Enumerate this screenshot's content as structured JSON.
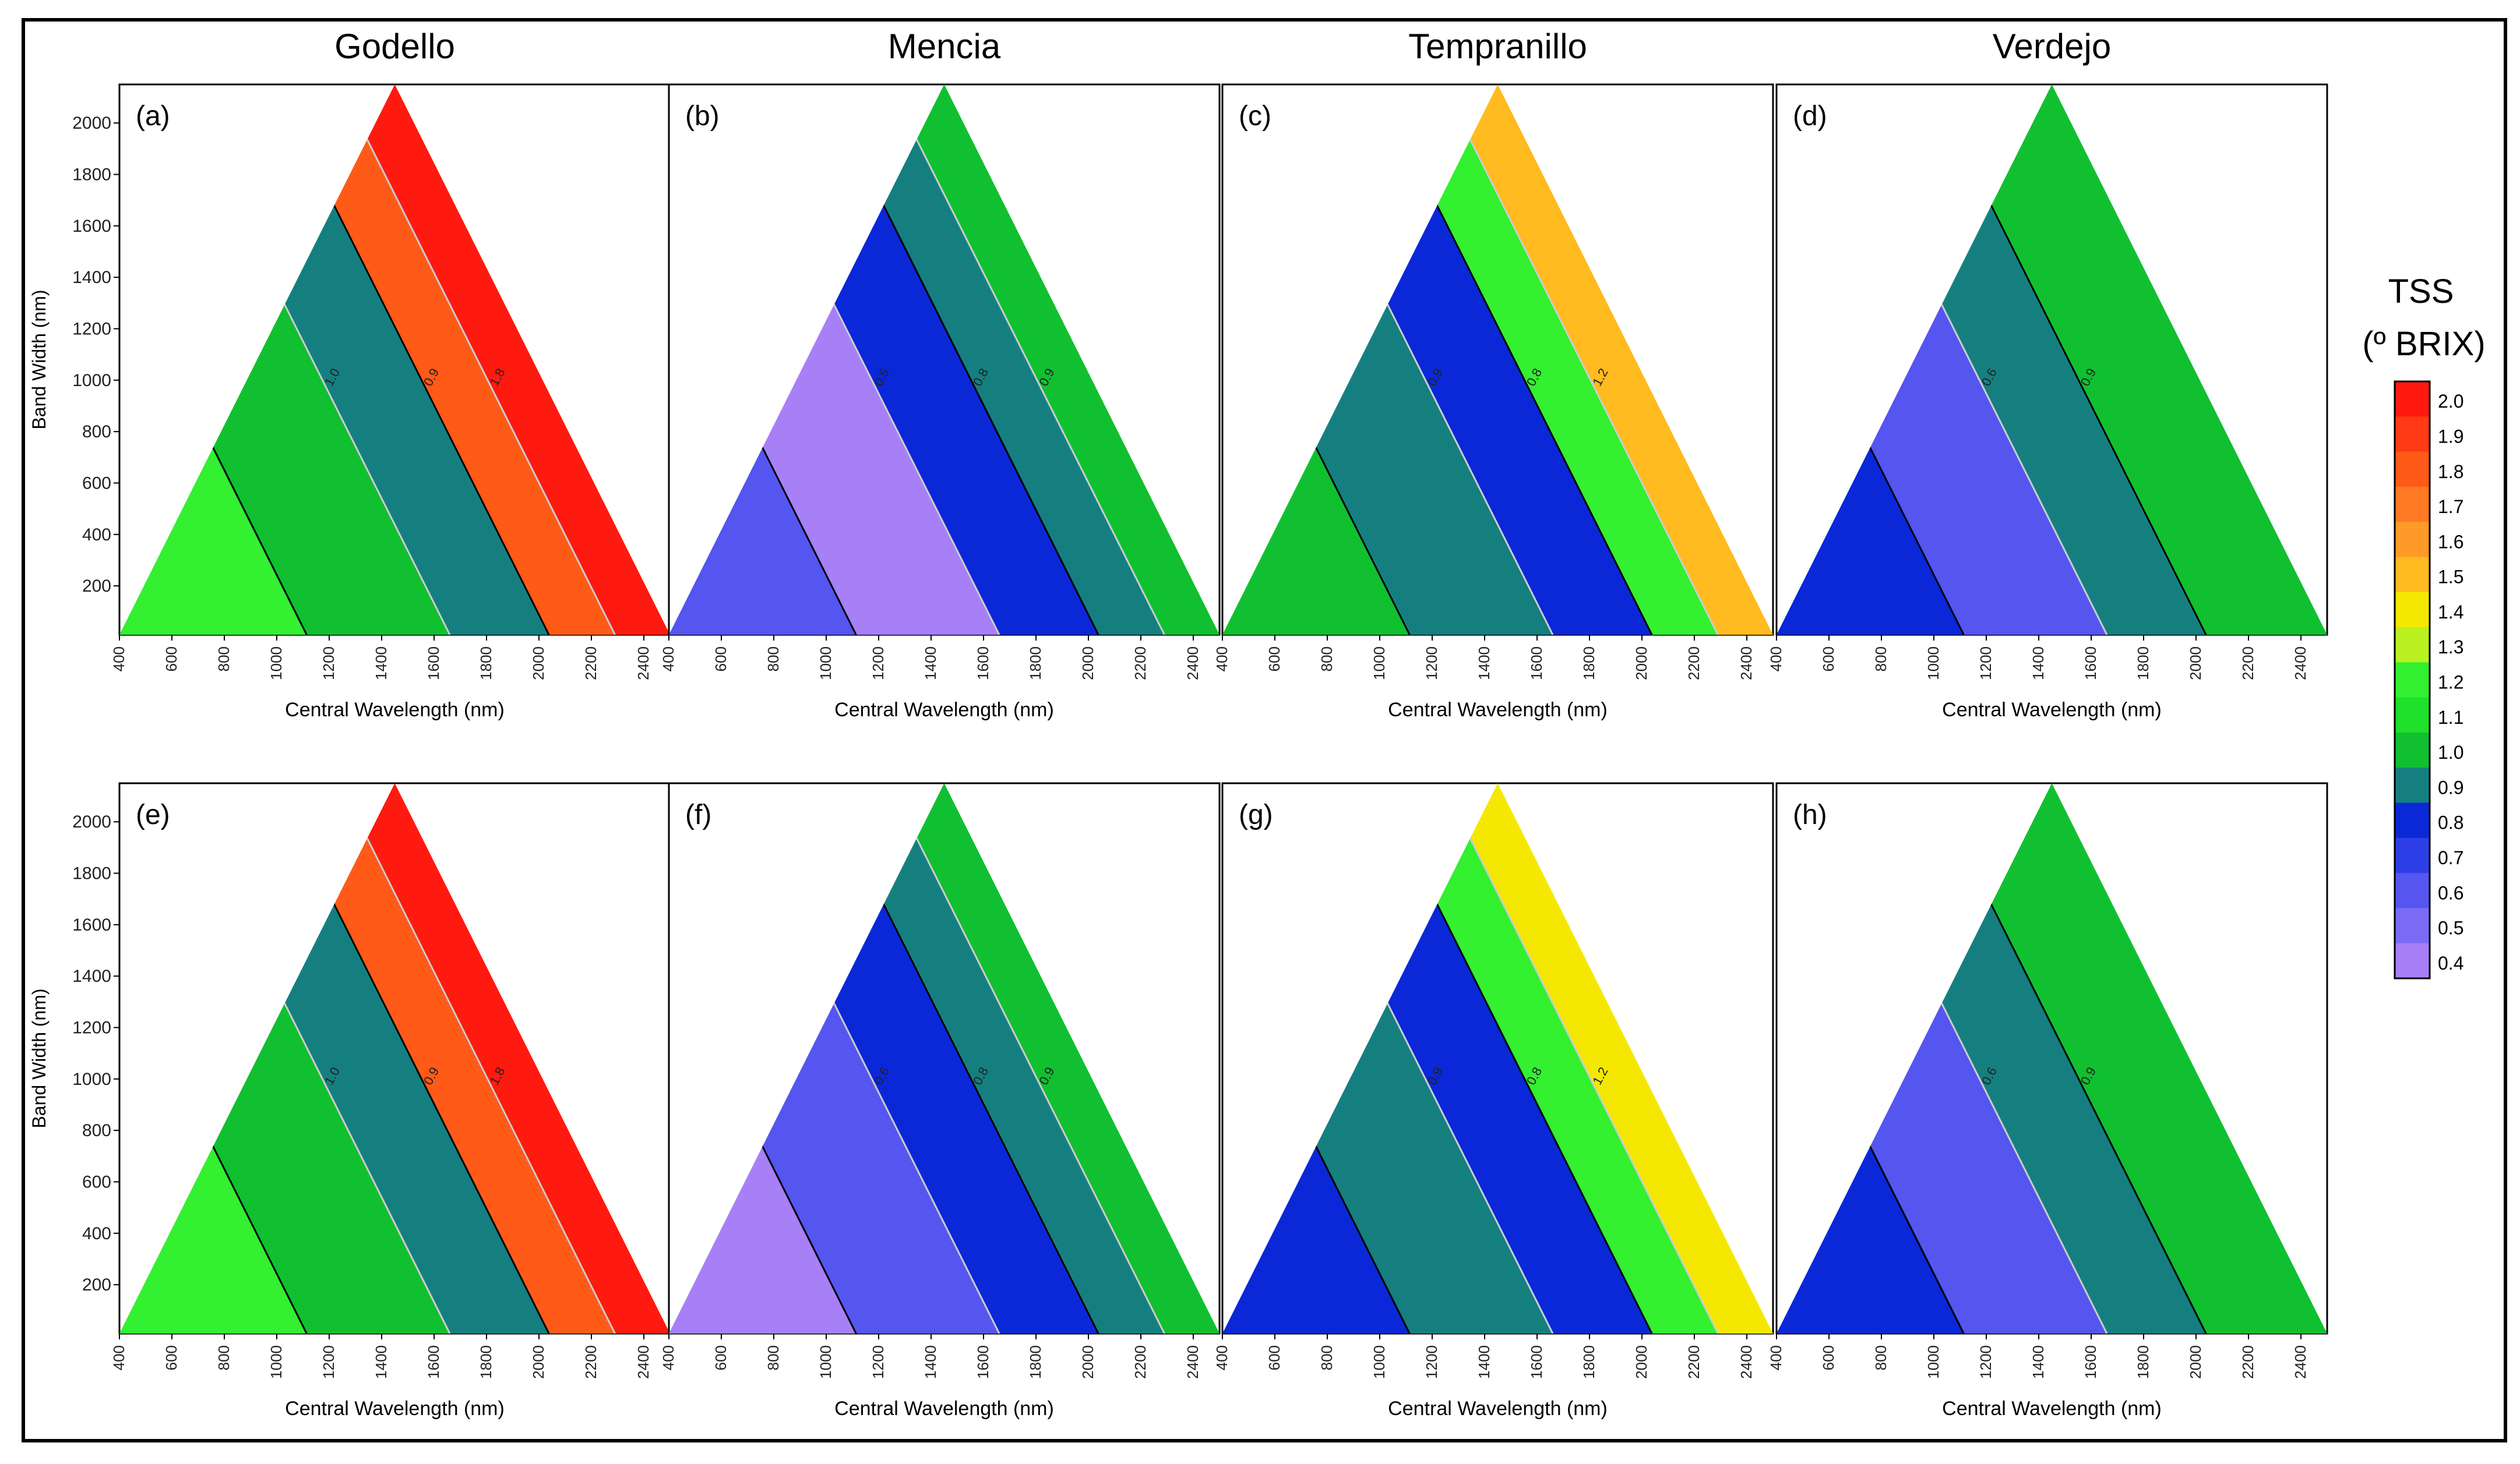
{
  "column_titles": [
    "Godello",
    "Mencia",
    "Tempranillo",
    "Verdejo"
  ],
  "legend": {
    "title_line1": "TSS",
    "title_line2": "(º BRIX)",
    "levels": [
      "2.0",
      "1.9",
      "1.8",
      "1.7",
      "1.6",
      "1.5",
      "1.4",
      "1.3",
      "1.2",
      "1.1",
      "1.0",
      "0.9",
      "0.8",
      "0.7",
      "0.6",
      "0.5",
      "0.4"
    ],
    "colors": [
      "#ff1a10",
      "#ff3a14",
      "#ff5a18",
      "#ff7a22",
      "#ff9a28",
      "#ffbb20",
      "#f5e800",
      "#b8f020",
      "#33f030",
      "#1fe02a",
      "#10c030",
      "#157f80",
      "#0a28d8",
      "#2e3ee6",
      "#5555f0",
      "#7a6cf5",
      "#a77ff7"
    ]
  },
  "chart_data": [
    {
      "type": "heatmap",
      "panel": "(a)",
      "title": "Godello",
      "xlabel": "Central Wavelength (nm)",
      "ylabel": "Band Width (nm)",
      "xlim": [
        400,
        2500
      ],
      "ylim": [
        10,
        2150
      ],
      "xticks": [
        400,
        600,
        800,
        1000,
        1200,
        1400,
        1600,
        1800,
        2000,
        2200,
        2400
      ],
      "yticks": [
        200,
        400,
        600,
        800,
        1000,
        1200,
        1400,
        1600,
        1800,
        2000
      ],
      "zones": [
        {
          "label": "1.2",
          "color": "#33f030"
        },
        {
          "label": "1.0",
          "color": "#10c030"
        },
        {
          "label": "0.9",
          "color": "#157f80"
        },
        {
          "label": "1.8",
          "color": "#ff5a18"
        },
        {
          "label": "2.0",
          "color": "#ff1a10"
        }
      ]
    },
    {
      "type": "heatmap",
      "panel": "(b)",
      "title": "Mencia",
      "xlabel": "Central Wavelength (nm)",
      "ylabel": "",
      "xlim": [
        400,
        2500
      ],
      "ylim": [
        10,
        2150
      ],
      "xticks": [
        400,
        600,
        800,
        1000,
        1200,
        1400,
        1600,
        1800,
        2000,
        2200,
        2400
      ],
      "yticks": [],
      "zones": [
        {
          "label": "0.6",
          "color": "#5555f0"
        },
        {
          "label": "0.5",
          "color": "#a77ff7"
        },
        {
          "label": "0.8",
          "color": "#0a28d8"
        },
        {
          "label": "0.9",
          "color": "#157f80"
        },
        {
          "label": "1.0",
          "color": "#10c030"
        }
      ]
    },
    {
      "type": "heatmap",
      "panel": "(c)",
      "title": "Tempranillo",
      "xlabel": "Central Wavelength (nm)",
      "ylabel": "",
      "xlim": [
        400,
        2500
      ],
      "ylim": [
        10,
        2150
      ],
      "xticks": [
        400,
        600,
        800,
        1000,
        1200,
        1400,
        1600,
        1800,
        2000,
        2200,
        2400
      ],
      "yticks": [],
      "zones": [
        {
          "label": "1.0",
          "color": "#10c030"
        },
        {
          "label": "0.9",
          "color": "#157f80"
        },
        {
          "label": "0.8",
          "color": "#0a28d8"
        },
        {
          "label": "1.2",
          "color": "#33f030"
        },
        {
          "label": "1.6",
          "color": "#ffbb20"
        }
      ]
    },
    {
      "type": "heatmap",
      "panel": "(d)",
      "title": "Verdejo",
      "xlabel": "Central Wavelength (nm)",
      "ylabel": "",
      "xlim": [
        400,
        2500
      ],
      "ylim": [
        10,
        2150
      ],
      "xticks": [
        400,
        600,
        800,
        1000,
        1200,
        1400,
        1600,
        1800,
        2000,
        2200,
        2400
      ],
      "yticks": [],
      "zones": [
        {
          "label": "0.8",
          "color": "#0a28d8"
        },
        {
          "label": "0.6",
          "color": "#5555f0"
        },
        {
          "label": "0.9",
          "color": "#157f80"
        },
        {
          "label": "1.0",
          "color": "#10c030"
        }
      ]
    },
    {
      "type": "heatmap",
      "panel": "(e)",
      "title": "",
      "xlabel": "Central Wavelength (nm)",
      "ylabel": "Band Width (nm)",
      "xlim": [
        400,
        2500
      ],
      "ylim": [
        10,
        2150
      ],
      "xticks": [
        400,
        600,
        800,
        1000,
        1200,
        1400,
        1600,
        1800,
        2000,
        2200,
        2400
      ],
      "yticks": [
        200,
        400,
        600,
        800,
        1000,
        1200,
        1400,
        1600,
        1800,
        2000
      ],
      "zones": [
        {
          "label": "1.2",
          "color": "#33f030"
        },
        {
          "label": "1.0",
          "color": "#10c030"
        },
        {
          "label": "0.9",
          "color": "#157f80"
        },
        {
          "label": "1.8",
          "color": "#ff5a18"
        },
        {
          "label": "2.0",
          "color": "#ff1a10"
        }
      ]
    },
    {
      "type": "heatmap",
      "panel": "(f)",
      "title": "",
      "xlabel": "Central Wavelength (nm)",
      "ylabel": "",
      "xlim": [
        400,
        2500
      ],
      "ylim": [
        10,
        2150
      ],
      "xticks": [
        400,
        600,
        800,
        1000,
        1200,
        1400,
        1600,
        1800,
        2000,
        2200,
        2400
      ],
      "yticks": [],
      "zones": [
        {
          "label": "0.5",
          "color": "#a77ff7"
        },
        {
          "label": "0.6",
          "color": "#5555f0"
        },
        {
          "label": "0.8",
          "color": "#0a28d8"
        },
        {
          "label": "0.9",
          "color": "#157f80"
        },
        {
          "label": "1.0",
          "color": "#10c030"
        }
      ]
    },
    {
      "type": "heatmap",
      "panel": "(g)",
      "title": "",
      "xlabel": "Central Wavelength (nm)",
      "ylabel": "",
      "xlim": [
        400,
        2500
      ],
      "ylim": [
        10,
        2150
      ],
      "xticks": [
        400,
        600,
        800,
        1000,
        1200,
        1400,
        1600,
        1800,
        2000,
        2200,
        2400
      ],
      "yticks": [],
      "zones": [
        {
          "label": "0.8",
          "color": "#0a28d8"
        },
        {
          "label": "0.9",
          "color": "#157f80"
        },
        {
          "label": "0.8",
          "color": "#0a28d8"
        },
        {
          "label": "1.2",
          "color": "#33f030"
        },
        {
          "label": "1.4",
          "color": "#f5e800"
        }
      ]
    },
    {
      "type": "heatmap",
      "panel": "(h)",
      "title": "",
      "xlabel": "Central Wavelength (nm)",
      "ylabel": "",
      "xlim": [
        400,
        2500
      ],
      "ylim": [
        10,
        2150
      ],
      "xticks": [
        400,
        600,
        800,
        1000,
        1200,
        1400,
        1600,
        1800,
        2000,
        2200,
        2400
      ],
      "yticks": [],
      "zones": [
        {
          "label": "0.8",
          "color": "#0a28d8"
        },
        {
          "label": "0.6",
          "color": "#5555f0"
        },
        {
          "label": "0.9",
          "color": "#157f80"
        },
        {
          "label": "1.0",
          "color": "#10c030"
        }
      ]
    }
  ]
}
